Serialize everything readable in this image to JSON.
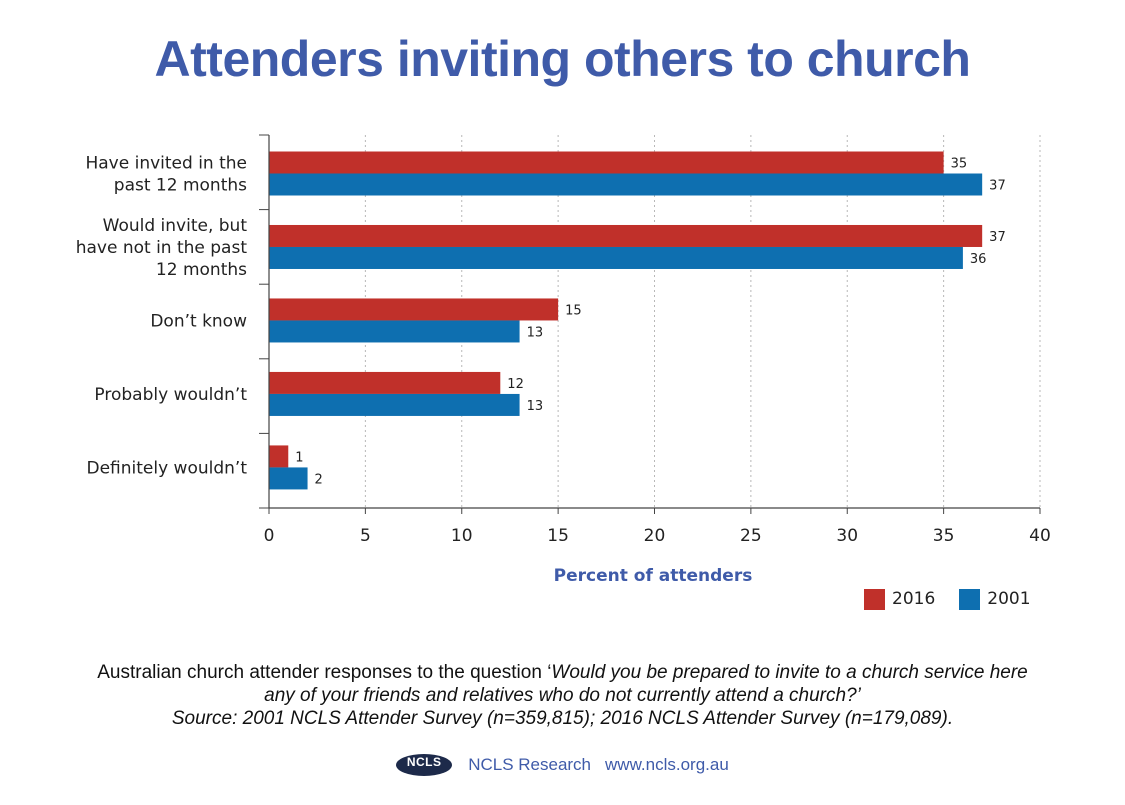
{
  "title": "Attenders inviting others to church",
  "chart_data": {
    "type": "bar",
    "orientation": "horizontal",
    "categories": [
      [
        "Have invited in the",
        "past 12 months"
      ],
      [
        "Would invite, but",
        "have not in the past",
        "12 months"
      ],
      [
        "Don’t know"
      ],
      [
        "Probably wouldn’t"
      ],
      [
        "Definitely wouldn’t"
      ]
    ],
    "series": [
      {
        "name": "2016",
        "color": "#c0302a",
        "values": [
          35,
          37,
          15,
          12,
          1
        ]
      },
      {
        "name": "2001",
        "color": "#0e6fb0",
        "values": [
          37,
          36,
          13,
          13,
          2
        ]
      }
    ],
    "xlabel": "Percent of attenders",
    "xlim": [
      0,
      40
    ],
    "xticks": [
      0,
      5,
      10,
      15,
      20,
      25,
      30,
      35,
      40
    ],
    "grid": "vertical dotted",
    "legend": "bottom-right"
  },
  "caption": {
    "line1_plain": "Australian church attender responses to the question ‘",
    "line1_italic": "Would you be prepared to invite to a church service here",
    "line2": "any of your friends and relatives who do not currently attend a church?’",
    "line3": "Source: 2001 NCLS Attender Survey (n=359,815); 2016 NCLS Attender Survey (n=179,089)."
  },
  "footer": {
    "logo_text": "NCLS",
    "org": "NCLS Research",
    "url": "www.ncls.org.au"
  }
}
